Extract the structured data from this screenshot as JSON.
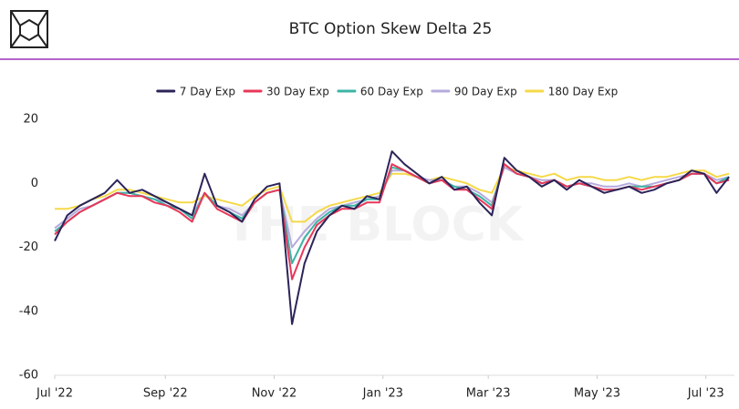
{
  "chart_data": {
    "type": "line",
    "title": "BTC Option Skew Delta 25",
    "watermark": "THE BLOCK",
    "x": [
      0,
      7,
      14,
      21,
      28,
      35,
      42,
      49,
      56,
      63,
      70,
      77,
      84,
      91,
      98,
      105,
      112,
      119,
      126,
      133,
      140,
      147,
      154,
      161,
      168,
      175,
      182,
      189,
      196,
      203,
      210,
      217,
      224,
      231,
      238,
      245,
      252,
      259,
      266,
      273,
      280,
      287,
      294,
      301,
      308,
      315,
      322,
      329,
      336,
      343,
      350,
      357,
      364,
      371,
      378
    ],
    "xlim": [
      0,
      381
    ],
    "xticks": [
      {
        "value": 0,
        "label": "Jul '22"
      },
      {
        "value": 62,
        "label": "Sep '22"
      },
      {
        "value": 123,
        "label": "Nov '22"
      },
      {
        "value": 184,
        "label": "Jan '23"
      },
      {
        "value": 243,
        "label": "Mar '23"
      },
      {
        "value": 304,
        "label": "May '23"
      },
      {
        "value": 365,
        "label": "Jul '23"
      }
    ],
    "ylim": [
      -60,
      20
    ],
    "yticks": [
      -60,
      -40,
      -20,
      0,
      20
    ],
    "grid": false,
    "legend": "top",
    "series": [
      {
        "name": "7 Day Exp",
        "color": "#2b2459",
        "values": [
          -18,
          -10,
          -7,
          -5,
          -3,
          1,
          -3,
          -2,
          -4,
          -6,
          -8,
          -10,
          3,
          -7,
          -9,
          -12,
          -5,
          -1,
          0,
          -44,
          -25,
          -15,
          -10,
          -7,
          -8,
          -4,
          -5,
          10,
          6,
          3,
          0,
          2,
          -2,
          -1,
          -6,
          -10,
          8,
          4,
          2,
          -1,
          1,
          -2,
          1,
          -1,
          -3,
          -2,
          -1,
          -3,
          -2,
          0,
          1,
          4,
          3,
          -3,
          2
        ]
      },
      {
        "name": "30 Day Exp",
        "color": "#e8375a",
        "values": [
          -16,
          -12,
          -9,
          -7,
          -5,
          -3,
          -4,
          -4,
          -6,
          -7,
          -9,
          -12,
          -3,
          -8,
          -10,
          -12,
          -6,
          -3,
          -2,
          -30,
          -20,
          -13,
          -10,
          -8,
          -8,
          -6,
          -6,
          6,
          4,
          2,
          0,
          1,
          -2,
          -2,
          -5,
          -8,
          6,
          3,
          2,
          0,
          1,
          -1,
          0,
          -1,
          -2,
          -2,
          -1,
          -2,
          -1,
          0,
          1,
          3,
          3,
          0,
          1
        ]
      },
      {
        "name": "60 Day Exp",
        "color": "#3cb4a4",
        "values": [
          -15,
          -12,
          -9,
          -7,
          -5,
          -3,
          -3,
          -4,
          -5,
          -7,
          -8,
          -11,
          -3,
          -7,
          -9,
          -11,
          -6,
          -3,
          -2,
          -25,
          -17,
          -12,
          -9,
          -7,
          -7,
          -5,
          -5,
          5,
          4,
          2,
          0,
          1,
          -1,
          -2,
          -4,
          -7,
          6,
          3,
          2,
          0,
          1,
          -1,
          0,
          -1,
          -2,
          -2,
          -1,
          -1,
          -1,
          0,
          1,
          3,
          3,
          0,
          2
        ]
      },
      {
        "name": "90 Day Exp",
        "color": "#b6aadd",
        "values": [
          -14,
          -11,
          -8,
          -7,
          -5,
          -3,
          -3,
          -4,
          -5,
          -6,
          -8,
          -10,
          -3,
          -7,
          -8,
          -10,
          -6,
          -3,
          -2,
          -20,
          -15,
          -11,
          -8,
          -7,
          -6,
          -5,
          -4,
          4,
          4,
          2,
          1,
          1,
          -1,
          -1,
          -3,
          -6,
          5,
          3,
          2,
          1,
          1,
          -1,
          0,
          0,
          -1,
          -1,
          0,
          -1,
          0,
          1,
          2,
          3,
          3,
          1,
          2
        ]
      },
      {
        "name": "180 Day Exp",
        "color": "#f5d949",
        "values": [
          -8,
          -8,
          -7,
          -5,
          -4,
          -2,
          -2,
          -3,
          -4,
          -5,
          -6,
          -6,
          -4,
          -5,
          -6,
          -7,
          -4,
          -2,
          -1,
          -12,
          -12,
          -9,
          -7,
          -6,
          -5,
          -4,
          -3,
          3,
          3,
          2,
          1,
          2,
          1,
          0,
          -2,
          -3,
          5,
          4,
          3,
          2,
          3,
          1,
          2,
          2,
          1,
          1,
          2,
          1,
          2,
          2,
          3,
          4,
          4,
          2,
          3
        ]
      }
    ]
  }
}
